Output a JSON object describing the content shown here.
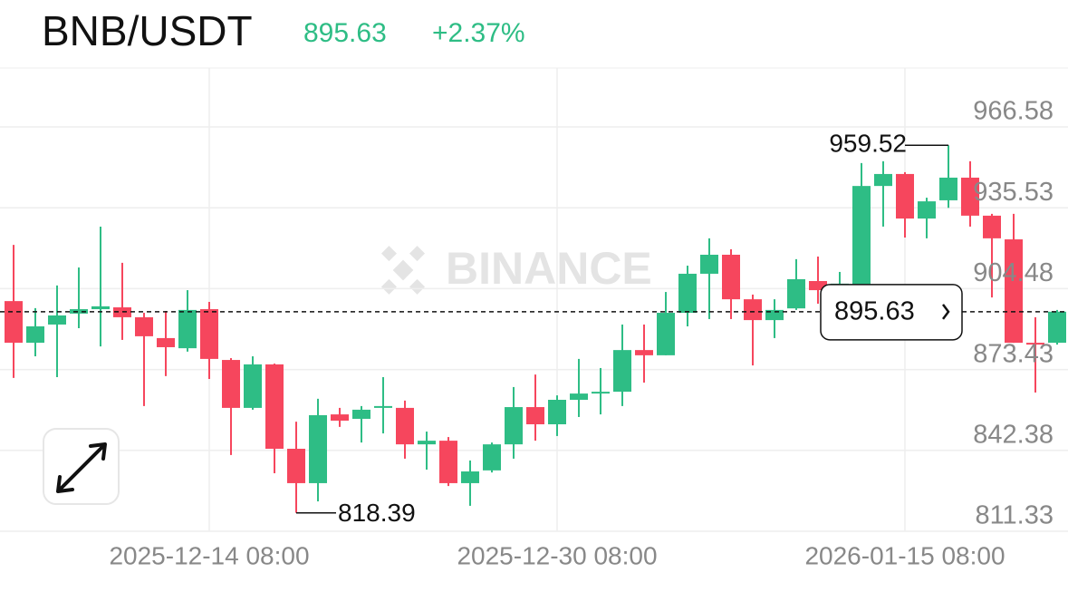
{
  "header": {
    "title": "BNB/USDT",
    "change": "+2.37%"
  },
  "chart_data": {
    "type": "candlestick",
    "watermark": "BINANCE",
    "categories": [
      null,
      null,
      null,
      null,
      null,
      null,
      null,
      null,
      null,
      "2025-12-14 08:00",
      null,
      null,
      null,
      null,
      null,
      null,
      null,
      null,
      null,
      null,
      null,
      null,
      null,
      null,
      null,
      "2025-12-30 08:00",
      null,
      null,
      null,
      null,
      null,
      null,
      null,
      null,
      null,
      null,
      null,
      null,
      null,
      null,
      null,
      "2026-01-15 08:00",
      null,
      null,
      null,
      null,
      null,
      null,
      null
    ],
    "open": [
      899.7,
      883.7,
      890.7,
      894.9,
      896.6,
      897.3,
      893.5,
      885.5,
      881.6,
      896.6,
      877.1,
      858.7,
      875.4,
      843.0,
      829.8,
      856.2,
      854.5,
      858.7,
      858.7,
      844.7,
      846.1,
      829.8,
      834.7,
      844.7,
      859.0,
      852.4,
      861.8,
      864.2,
      864.9,
      880.9,
      878.9,
      895.2,
      910.2,
      917.5,
      900.4,
      892.4,
      896.9,
      907.4,
      903.9,
      905.7,
      943.9,
      948.5,
      931.4,
      938.4,
      947.1,
      932.5,
      923.4,
      883.7,
      883.7
    ],
    "high": [
      921.3,
      897.0,
      905.7,
      912.6,
      928.3,
      914.4,
      895.2,
      895.9,
      903.9,
      899.4,
      877.8,
      878.5,
      875.7,
      853.4,
      862.2,
      858.7,
      859.4,
      870.5,
      861.5,
      849.6,
      847.5,
      838.5,
      845.4,
      866.7,
      871.5,
      863.5,
      877.5,
      874.0,
      890.7,
      890.7,
      903.2,
      913.3,
      923.8,
      919.6,
      902.2,
      900.4,
      915.8,
      916.8,
      910.9,
      952.7,
      953.4,
      949.2,
      939.4,
      959.52,
      953.4,
      933.2,
      933.2,
      893.5,
      896.3
    ],
    "low": [
      870.2,
      878.5,
      870.5,
      889.3,
      882.3,
      884.8,
      859.4,
      870.9,
      880.3,
      869.8,
      840.6,
      858.0,
      833.6,
      818.39,
      822.8,
      851.4,
      845.4,
      848.9,
      839.2,
      835.0,
      828.7,
      821.1,
      833.9,
      839.2,
      846.1,
      847.9,
      855.2,
      856.2,
      859.4,
      868.4,
      878.9,
      890.0,
      892.8,
      892.8,
      875.0,
      885.5,
      896.3,
      898.7,
      899.7,
      900.4,
      928.3,
      924.1,
      923.8,
      935.5,
      928.3,
      901.1,
      883.7,
      864.6,
      883.0
    ],
    "close": [
      883.7,
      890.0,
      894.2,
      896.6,
      897.7,
      893.5,
      886.2,
      882.0,
      896.3,
      877.5,
      858.7,
      875.4,
      843.0,
      829.8,
      855.9,
      853.8,
      858.0,
      859.4,
      844.7,
      846.1,
      829.8,
      834.3,
      844.7,
      859.0,
      852.4,
      861.8,
      864.2,
      864.9,
      880.9,
      878.9,
      895.2,
      910.2,
      917.5,
      900.4,
      892.4,
      896.3,
      908.1,
      903.9,
      906.4,
      943.9,
      948.5,
      931.4,
      938.0,
      947.1,
      932.5,
      923.8,
      883.7,
      883.0,
      895.63
    ],
    "up_color": "#2ebd85",
    "down_color": "#f6465d",
    "last_price": 895.63,
    "high_label": 959.52,
    "low_label": 818.39,
    "ylim": [
      811.33,
      989.2
    ],
    "yticks": [
      811.33,
      842.38,
      873.43,
      904.48,
      935.53,
      966.58
    ],
    "grid": true
  }
}
